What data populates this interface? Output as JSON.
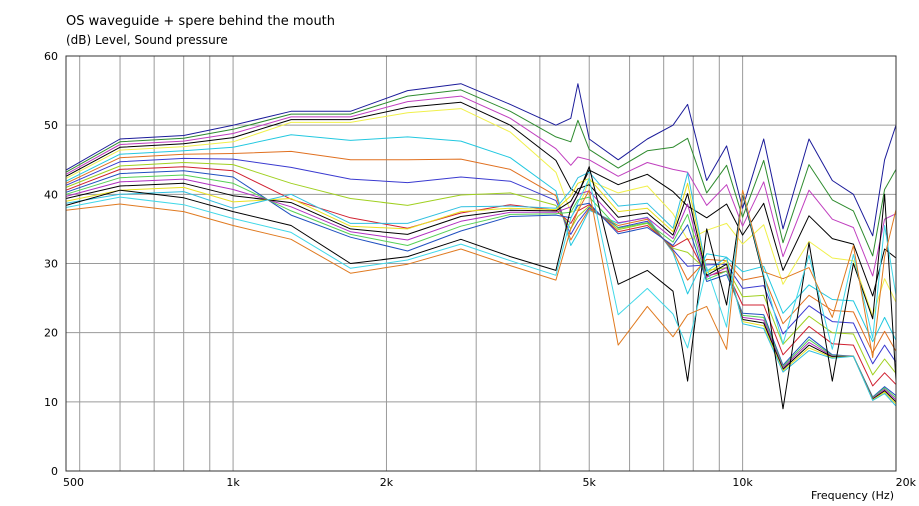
{
  "chart_data": {
    "type": "line",
    "title": "OS waveguide + spere behind the mouth",
    "ylabel": "(dB)  Level, Sound pressure",
    "xlabel": "Frequency  (Hz)",
    "x_scale": "log",
    "xlim": [
      470,
      20000
    ],
    "ylim": [
      0,
      60
    ],
    "grid": true,
    "legend": "none",
    "x_tick_labels": [
      {
        "value": 500,
        "label": "500"
      },
      {
        "value": 1000,
        "label": "1k"
      },
      {
        "value": 2000,
        "label": "2k"
      },
      {
        "value": 5000,
        "label": "5k"
      },
      {
        "value": 10000,
        "label": "10k"
      },
      {
        "value": 20000,
        "label": "20k"
      }
    ],
    "y_ticks": [
      0,
      10,
      20,
      30,
      40,
      50,
      60
    ],
    "x": [
      470,
      600,
      800,
      1000,
      1300,
      1700,
      2200,
      2800,
      3500,
      4300,
      4600,
      4750,
      5000,
      5700,
      6500,
      7300,
      7800,
      8500,
      9300,
      10000,
      11000,
      12000,
      13500,
      15000,
      16500,
      18000,
      19000,
      20000
    ],
    "series": [
      {
        "color": "#1b1b9a",
        "values": [
          43.5,
          48,
          48.5,
          50,
          52,
          52,
          55,
          56,
          53,
          50,
          51,
          56,
          48,
          45,
          48,
          50,
          53,
          42,
          47,
          38,
          48,
          35,
          48,
          42,
          40,
          34,
          45,
          50
        ]
      },
      {
        "color": "#2e8b2e",
        "values": [
          43.2,
          47.6,
          48.1,
          49.4,
          51.6,
          51.6,
          54.2,
          55.1,
          52,
          48.3,
          47.6,
          50.7,
          46.5,
          43.8,
          46.3,
          46.8,
          48.1,
          40.2,
          44.2,
          36.7,
          44.9,
          33,
          44.3,
          39.2,
          37.6,
          31.1,
          40.7,
          43.6
        ]
      },
      {
        "color": "#c03fbf",
        "values": [
          42.9,
          47.2,
          47.7,
          48.8,
          51.2,
          51.2,
          53.4,
          54.2,
          51,
          46.6,
          44.2,
          45.4,
          45,
          42.6,
          44.6,
          43.6,
          43.2,
          38.4,
          41.4,
          35.4,
          41.8,
          31,
          40.6,
          36.4,
          35.2,
          28.2,
          36.4,
          37.2
        ]
      },
      {
        "color": "#000000",
        "values": [
          42.6,
          46.8,
          47.3,
          48.2,
          50.8,
          50.8,
          52.6,
          53.3,
          50,
          44.9,
          40.8,
          40.1,
          43.5,
          41.4,
          42.9,
          40.4,
          38.3,
          36.6,
          38.6,
          34.1,
          38.7,
          29,
          36.9,
          33.6,
          32.8,
          25.3,
          32.1,
          30.8
        ]
      },
      {
        "color": "#f0f04a",
        "values": [
          42.3,
          46.4,
          46.9,
          47.6,
          50.4,
          50.4,
          51.8,
          52.4,
          49,
          43.2,
          37.4,
          37.8,
          42,
          40.2,
          41.2,
          37.2,
          33.4,
          34.8,
          35.8,
          32.8,
          35.6,
          27,
          33.2,
          30.8,
          30.4,
          22.4,
          27.8,
          24.4
        ]
      },
      {
        "color": "#22c8e0",
        "values": [
          41.9,
          45.8,
          46.3,
          46.8,
          48.6,
          47.8,
          48.3,
          47.7,
          45.3,
          40.5,
          32.6,
          34.4,
          37.7,
          35.8,
          36.7,
          31.6,
          25.6,
          31.4,
          30.9,
          28.8,
          29.6,
          22.8,
          26.9,
          24.8,
          24.6,
          18.7,
          22.2,
          18.9
        ]
      },
      {
        "color": "#e07020",
        "values": [
          41.6,
          45.3,
          45.8,
          45.9,
          46.2,
          45,
          45,
          45.1,
          43.6,
          39.8,
          33.4,
          35.2,
          37.9,
          35.5,
          36.4,
          31.8,
          27.6,
          30.6,
          30.4,
          27.6,
          28.2,
          21.3,
          25.4,
          23.2,
          23,
          17.1,
          20.2,
          17.3
        ]
      },
      {
        "color": "#3a3ad0",
        "values": [
          41.3,
          44.7,
          45.2,
          45.1,
          43.9,
          42.2,
          41.7,
          42.5,
          41.9,
          39.1,
          34.2,
          36,
          38.1,
          35.2,
          36.1,
          32,
          29.6,
          29.8,
          29.9,
          26.4,
          26.8,
          19.8,
          23.9,
          21.6,
          21.4,
          15.5,
          18.2,
          15.7
        ]
      },
      {
        "color": "#a0d020",
        "values": [
          41,
          44.1,
          44.6,
          44.3,
          41.6,
          39.4,
          38.4,
          39.9,
          40.2,
          38.4,
          35,
          36.8,
          38.3,
          34.9,
          35.8,
          32.2,
          31.6,
          29,
          29.4,
          25.2,
          25.4,
          18.3,
          22.4,
          20,
          19.8,
          13.9,
          16.2,
          14.1
        ]
      },
      {
        "color": "#d02030",
        "values": [
          40.6,
          43.6,
          44,
          43.4,
          39.3,
          36.6,
          35.1,
          37.3,
          38.5,
          37.7,
          35.8,
          37.6,
          38.5,
          34.6,
          35.5,
          32.4,
          33.6,
          28.2,
          28.9,
          24,
          24,
          16.8,
          20.9,
          18.4,
          18.2,
          12.3,
          14.2,
          12.5
        ]
      },
      {
        "color": "#2050c0",
        "values": [
          40.3,
          43,
          43.4,
          42.5,
          37,
          33.8,
          31.8,
          34.7,
          36.8,
          37,
          36.6,
          38.4,
          38.7,
          34.3,
          35.2,
          32.6,
          35.6,
          27.4,
          28.4,
          22.8,
          22.6,
          15.3,
          19.4,
          16.8,
          16.6,
          10.7,
          12.2,
          10.9
        ]
      },
      {
        "color": "#55d055",
        "values": [
          40,
          42.4,
          42.8,
          41.6,
          37.6,
          34.2,
          32.6,
          35.4,
          37.1,
          37.2,
          37.4,
          39.2,
          39.6,
          35.1,
          35.9,
          33.1,
          37.1,
          27.7,
          28.9,
          22.5,
          22.2,
          15.1,
          19,
          16.7,
          16.6,
          10.6,
          12,
          10.6
        ]
      },
      {
        "color": "#b030c0",
        "values": [
          39.7,
          41.8,
          42.2,
          40.7,
          38.2,
          34.6,
          33.4,
          36.1,
          37.4,
          37.4,
          38.2,
          40,
          40.5,
          35.9,
          36.6,
          33.6,
          38.6,
          28,
          29.4,
          22.2,
          21.8,
          14.9,
          18.6,
          16.6,
          16.6,
          10.5,
          11.8,
          10.3
        ]
      },
      {
        "color": "#000000",
        "values": [
          39.4,
          41.2,
          41.6,
          39.8,
          38.8,
          35,
          34.2,
          36.8,
          37.7,
          37.6,
          39,
          40.8,
          41.4,
          36.7,
          37.3,
          34.1,
          40.1,
          28.3,
          29.9,
          21.9,
          21.4,
          14.7,
          18.2,
          16.5,
          16.6,
          10.4,
          11.6,
          10
        ]
      },
      {
        "color": "#e8e020",
        "values": [
          39,
          40.6,
          41,
          38.9,
          39.4,
          35.4,
          35,
          37.5,
          38,
          37.8,
          39.8,
          41.6,
          42.3,
          37.5,
          38,
          34.6,
          41.6,
          28.6,
          30.4,
          21.6,
          21,
          14.5,
          17.8,
          16.4,
          16.6,
          10.3,
          11.4,
          9.7
        ]
      },
      {
        "color": "#30c0e0",
        "values": [
          38.7,
          40,
          40.4,
          38,
          40,
          35.8,
          35.8,
          38.2,
          38.3,
          38,
          40.6,
          42.4,
          43.2,
          38.3,
          38.7,
          35.1,
          43.1,
          28.9,
          30.9,
          21.3,
          20.6,
          14.3,
          17.4,
          16.3,
          16.6,
          10.2,
          11.2,
          9.4
        ]
      },
      {
        "color": "#000000",
        "values": [
          38.4,
          40.6,
          39.5,
          37.5,
          35.5,
          30,
          31,
          33.5,
          31,
          29,
          38,
          40,
          44,
          27,
          29,
          26,
          13,
          35,
          24,
          40,
          28,
          9,
          33,
          13,
          30,
          22,
          40,
          13
        ]
      },
      {
        "color": "#40d8e8",
        "values": [
          38.1,
          39.6,
          38.5,
          36.5,
          34.5,
          29.3,
          30.5,
          32.8,
          30.4,
          28.3,
          36.5,
          38.8,
          42.3,
          22.6,
          26.4,
          22.7,
          17.8,
          29.4,
          20.8,
          40.3,
          28.4,
          18.4,
          31.2,
          17.6,
          31.3,
          19.2,
          35.5,
          25.4
        ]
      },
      {
        "color": "#e07a20",
        "values": [
          37.7,
          38.6,
          37.5,
          35.5,
          33.5,
          28.6,
          29.9,
          32.1,
          29.7,
          27.6,
          35,
          37.6,
          40.6,
          18.2,
          23.8,
          19.4,
          22.6,
          23.8,
          17.6,
          40.6,
          28.8,
          27.8,
          29.4,
          22.2,
          32.6,
          16.4,
          31,
          37.8
        ]
      }
    ]
  }
}
